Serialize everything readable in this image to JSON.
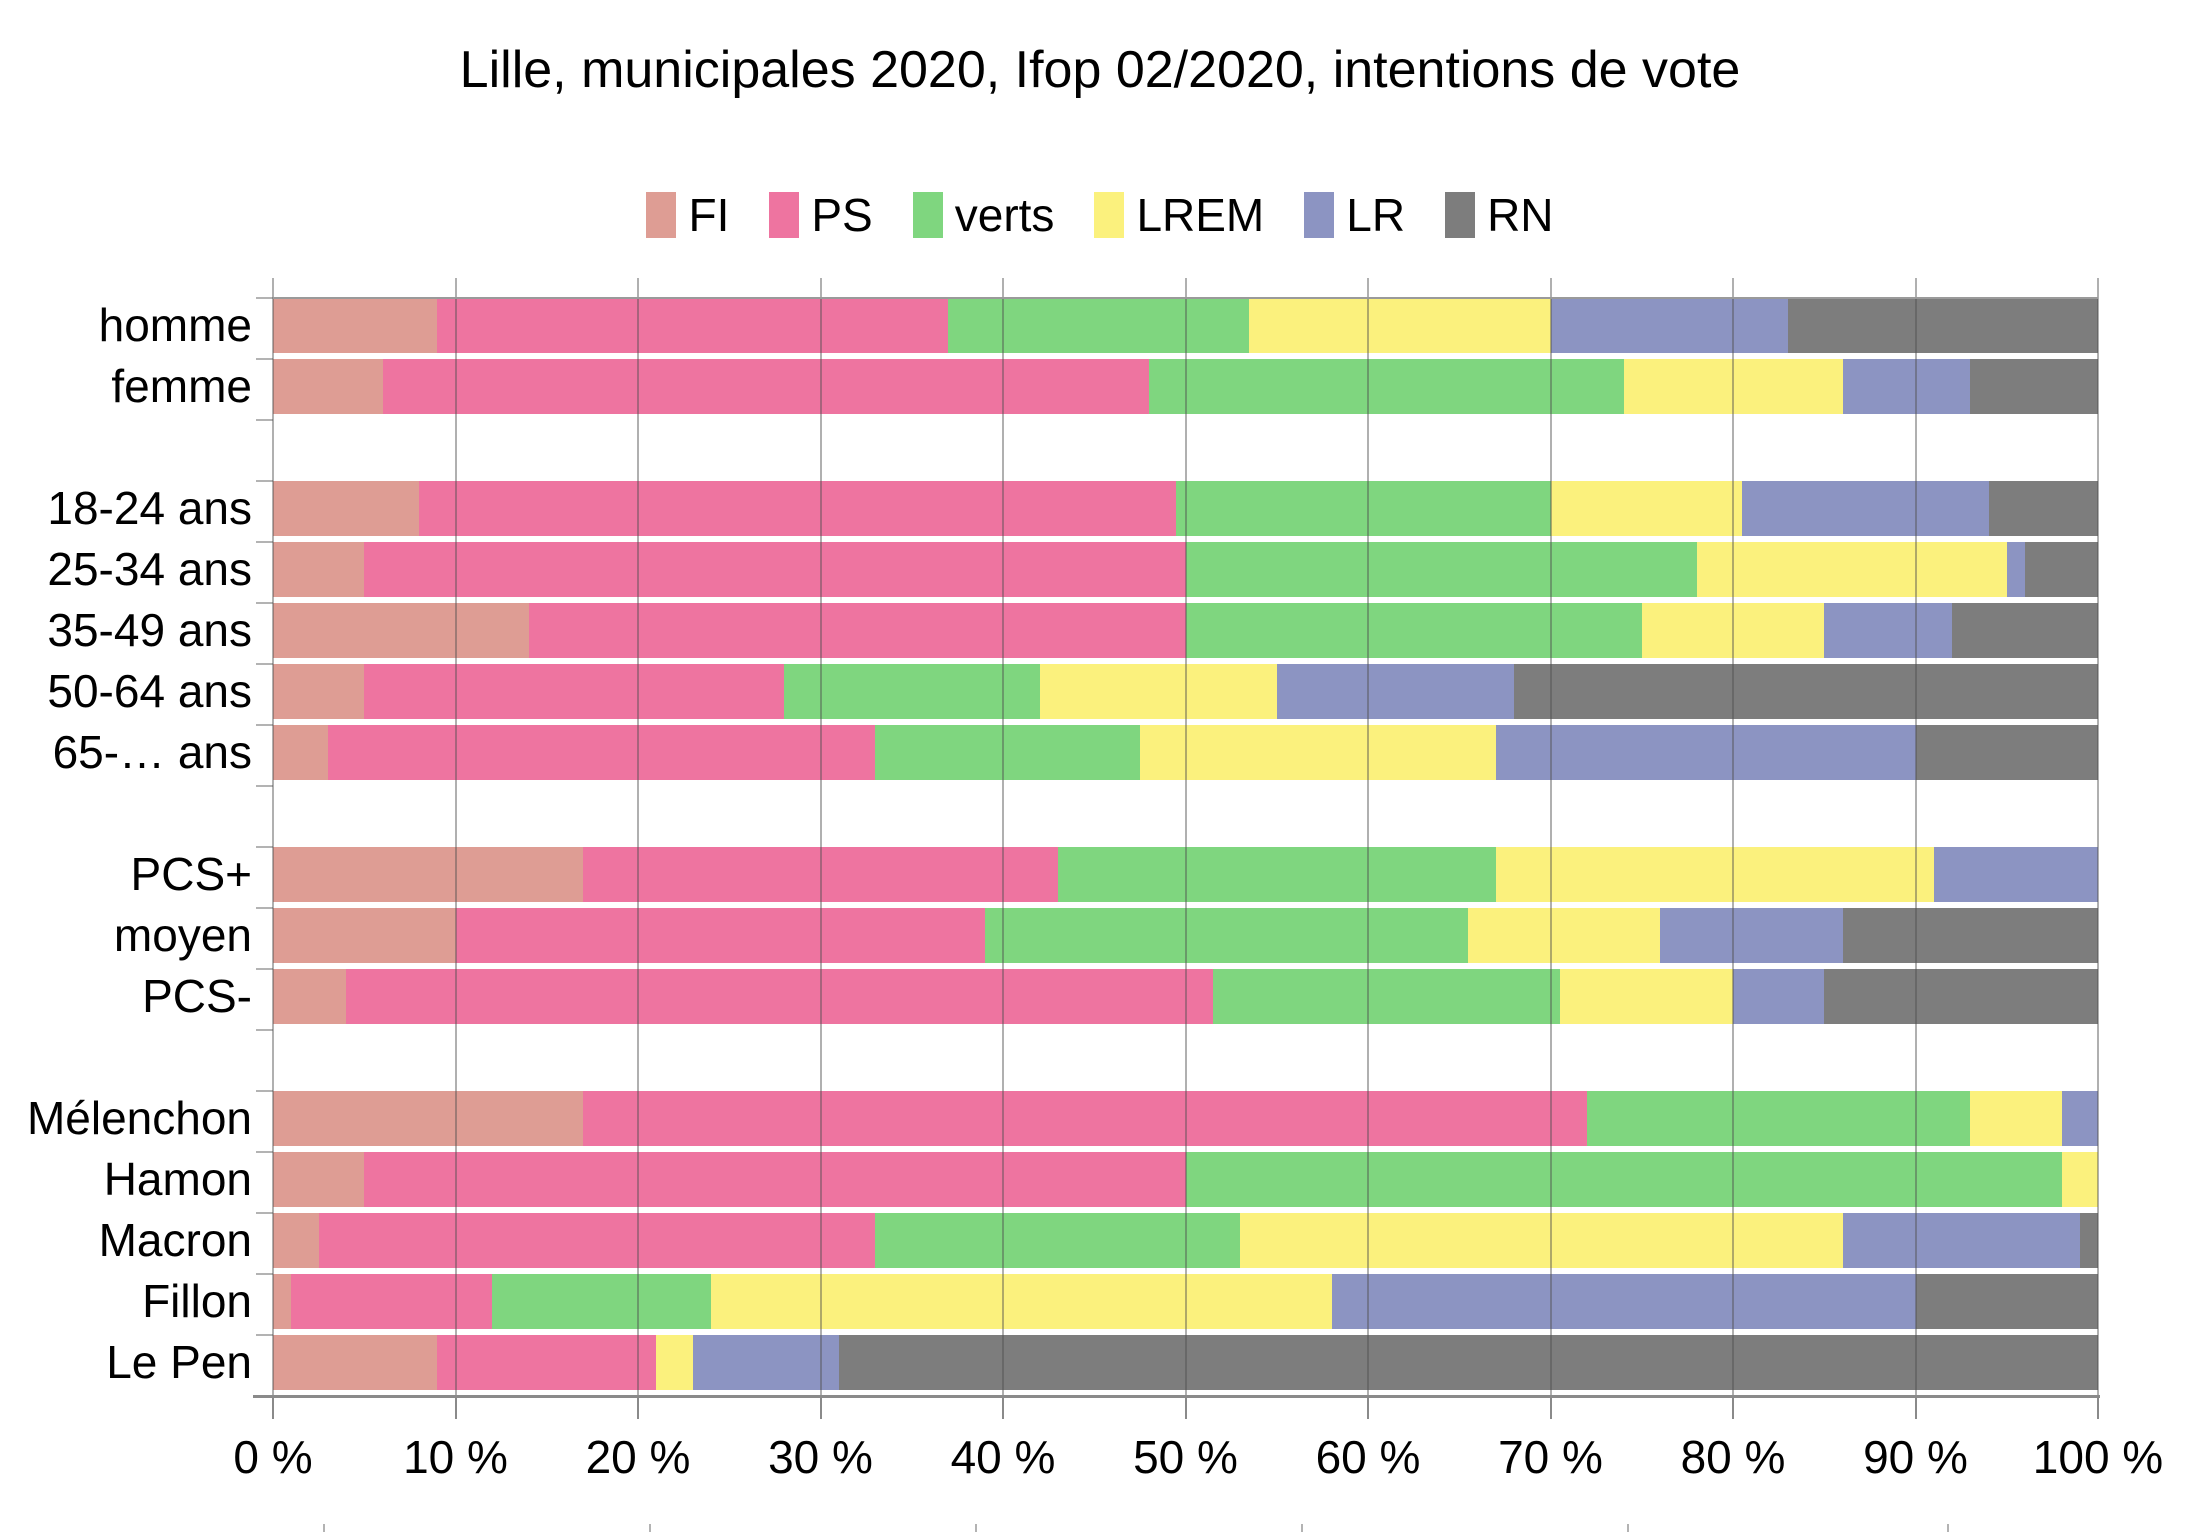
{
  "title": "Lille, municipales 2020, Ifop 02/2020, intentions de vote",
  "chart_data": {
    "type": "bar",
    "variant": "horizontal-stacked",
    "unit": "%",
    "xlim": [
      0,
      100
    ],
    "grid": true,
    "legend_position": "top",
    "x_ticks": [
      "0 %",
      "10 %",
      "20 %",
      "30 %",
      "40 %",
      "50 %",
      "60 %",
      "70 %",
      "80 %",
      "90 %",
      "100 %"
    ],
    "series": [
      "FI",
      "PS",
      "verts",
      "LREM",
      "LR",
      "RN"
    ],
    "colors": {
      "FI": "#de9d94",
      "PS": "#ee74a0",
      "verts": "#7fd67f",
      "LREM": "#fbf17d",
      "LR": "#8c94c2",
      "RN": "#7d7d7d"
    },
    "groups": [
      {
        "rows": [
          {
            "label": "homme",
            "values": [
              9,
              28,
              16.5,
              16.5,
              13,
              17
            ]
          },
          {
            "label": "femme",
            "values": [
              6,
              42,
              26,
              12,
              7,
              7
            ]
          }
        ]
      },
      {
        "rows": [
          {
            "label": "18-24 ans",
            "values": [
              8,
              41.5,
              20.5,
              10.5,
              13.5,
              6
            ]
          },
          {
            "label": "25-34 ans",
            "values": [
              5,
              45,
              28,
              17,
              1,
              4
            ]
          },
          {
            "label": "35-49 ans",
            "values": [
              14,
              36,
              25,
              10,
              7,
              8
            ]
          },
          {
            "label": "50-64 ans",
            "values": [
              5,
              23,
              14,
              13,
              13,
              32
            ]
          },
          {
            "label": "65-… ans",
            "values": [
              3,
              30,
              14.5,
              19.5,
              23,
              10
            ]
          }
        ]
      },
      {
        "rows": [
          {
            "label": "PCS+",
            "values": [
              17,
              26,
              24,
              24,
              9,
              0
            ]
          },
          {
            "label": "moyen",
            "values": [
              10,
              29,
              26.5,
              10.5,
              10,
              14
            ]
          },
          {
            "label": "PCS-",
            "values": [
              4,
              47.5,
              19,
              9.5,
              5,
              15
            ]
          }
        ]
      },
      {
        "rows": [
          {
            "label": "Mélenchon",
            "values": [
              17,
              55,
              21,
              5,
              2,
              0
            ]
          },
          {
            "label": "Hamon",
            "values": [
              5,
              45,
              48,
              2,
              0,
              0
            ]
          },
          {
            "label": "Macron",
            "values": [
              2.5,
              30.5,
              20,
              33,
              13,
              1
            ]
          },
          {
            "label": "Fillon",
            "values": [
              1,
              11,
              12,
              34,
              32,
              10
            ]
          },
          {
            "label": "Le Pen",
            "values": [
              9,
              12,
              0,
              2,
              8,
              69
            ]
          }
        ]
      }
    ],
    "bottom_edge_tick_x": [
      323,
      649,
      975,
      1301,
      1627,
      1947
    ]
  }
}
